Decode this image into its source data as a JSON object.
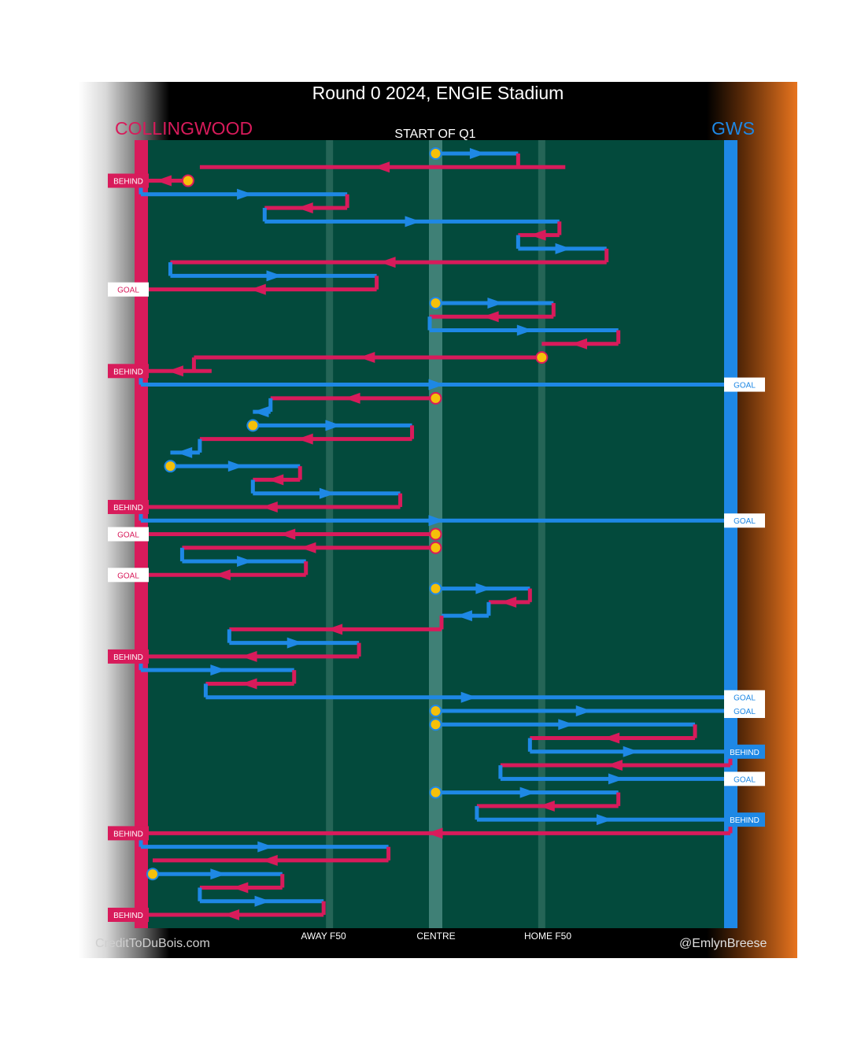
{
  "title": "Round 0 2024, ENGIE Stadium",
  "teams": {
    "left": {
      "name": "COLLINGWOOD",
      "color": "#d81b5b"
    },
    "right": {
      "name": "GWS",
      "color": "#1e88e5"
    }
  },
  "colors": {
    "field": "#034a3c",
    "centre_band": "#4a8a80",
    "f50_band": "#2b6a5c",
    "bounce": "#f5c00a"
  },
  "section_label": "START OF Q1",
  "credits": {
    "left": "CreditToDuBois.com",
    "right": "@EmlynBreese"
  },
  "chart_data": {
    "type": "line",
    "title": "Round 0 2024, ENGIE Stadium",
    "x_ticks": [
      {
        "label": "AWAY F50",
        "x": 32
      },
      {
        "label": "CENTRE",
        "x": 50
      },
      {
        "label": "HOME F50",
        "x": 68
      }
    ],
    "x_range": [
      0,
      100
    ],
    "legend": "none",
    "chains": [
      {
        "team": "GWS",
        "start_bounce": true,
        "x": [
          50,
          64
        ]
      },
      {
        "team": "COLLINGWOOD",
        "x": [
          72,
          10
        ]
      },
      {
        "team": "COLLINGWOOD",
        "start_bounce": true,
        "x": [
          8,
          0
        ],
        "result": "BEHIND"
      },
      {
        "team": "GWS",
        "x": [
          0,
          35
        ]
      },
      {
        "team": "COLLINGWOOD",
        "x": [
          35,
          21
        ]
      },
      {
        "team": "GWS",
        "x": [
          21,
          71
        ]
      },
      {
        "team": "COLLINGWOOD",
        "x": [
          71,
          64
        ]
      },
      {
        "team": "GWS",
        "x": [
          64,
          79
        ]
      },
      {
        "team": "COLLINGWOOD",
        "x": [
          79,
          5
        ]
      },
      {
        "team": "GWS",
        "x": [
          5,
          40
        ]
      },
      {
        "team": "COLLINGWOOD",
        "x": [
          40,
          0
        ],
        "result": "GOAL"
      },
      {
        "team": "GWS",
        "start_bounce": true,
        "x": [
          50,
          70
        ]
      },
      {
        "team": "COLLINGWOOD",
        "x": [
          70,
          49
        ]
      },
      {
        "team": "GWS",
        "x": [
          49,
          81
        ]
      },
      {
        "team": "COLLINGWOOD",
        "x": [
          81,
          68
        ]
      },
      {
        "team": "COLLINGWOOD",
        "start_bounce": true,
        "x": [
          68,
          9
        ]
      },
      {
        "team": "COLLINGWOOD",
        "x": [
          12,
          0
        ],
        "result": "BEHIND"
      },
      {
        "team": "GWS",
        "x": [
          0,
          100
        ],
        "result": "GOAL"
      },
      {
        "team": "COLLINGWOOD",
        "start_bounce": true,
        "x": [
          50,
          22
        ]
      },
      {
        "team": "GWS",
        "x": [
          22,
          19
        ]
      },
      {
        "team": "GWS",
        "start_bounce": true,
        "x": [
          19,
          46
        ]
      },
      {
        "team": "COLLINGWOOD",
        "x": [
          46,
          10
        ]
      },
      {
        "team": "GWS",
        "x": [
          10,
          5
        ]
      },
      {
        "team": "GWS",
        "start_bounce": true,
        "x": [
          5,
          27
        ]
      },
      {
        "team": "COLLINGWOOD",
        "x": [
          27,
          19
        ]
      },
      {
        "team": "GWS",
        "x": [
          19,
          44
        ]
      },
      {
        "team": "COLLINGWOOD",
        "x": [
          44,
          0
        ],
        "result": "BEHIND"
      },
      {
        "team": "GWS",
        "x": [
          0,
          100
        ],
        "result": "GOAL"
      },
      {
        "team": "COLLINGWOOD",
        "start_bounce": true,
        "x": [
          50,
          0
        ],
        "result": "GOAL"
      },
      {
        "team": "COLLINGWOOD",
        "start_bounce": true,
        "x": [
          50,
          7
        ]
      },
      {
        "team": "GWS",
        "x": [
          7,
          28
        ]
      },
      {
        "team": "COLLINGWOOD",
        "x": [
          28,
          0
        ],
        "result": "GOAL"
      },
      {
        "team": "GWS",
        "start_bounce": true,
        "x": [
          50,
          66
        ]
      },
      {
        "team": "COLLINGWOOD",
        "x": [
          66,
          59
        ]
      },
      {
        "team": "GWS",
        "x": [
          59,
          51
        ]
      },
      {
        "team": "COLLINGWOOD",
        "x": [
          51,
          15
        ]
      },
      {
        "team": "GWS",
        "x": [
          15,
          37
        ]
      },
      {
        "team": "COLLINGWOOD",
        "x": [
          37,
          0
        ],
        "result": "BEHIND"
      },
      {
        "team": "GWS",
        "x": [
          0,
          26
        ]
      },
      {
        "team": "COLLINGWOOD",
        "x": [
          26,
          11
        ]
      },
      {
        "team": "GWS",
        "x": [
          11,
          100
        ],
        "result": "GOAL"
      },
      {
        "team": "GWS",
        "start_bounce": true,
        "x": [
          50,
          100
        ],
        "result": "GOAL"
      },
      {
        "team": "GWS",
        "start_bounce": true,
        "x": [
          50,
          94
        ]
      },
      {
        "team": "COLLINGWOOD",
        "x": [
          94,
          66
        ]
      },
      {
        "team": "GWS",
        "x": [
          66,
          100
        ],
        "result": "BEHIND"
      },
      {
        "team": "COLLINGWOOD",
        "x": [
          100,
          61
        ]
      },
      {
        "team": "GWS",
        "x": [
          61,
          100
        ],
        "result": "GOAL"
      },
      {
        "team": "GWS",
        "start_bounce": true,
        "x": [
          50,
          81
        ]
      },
      {
        "team": "COLLINGWOOD",
        "x": [
          81,
          57
        ]
      },
      {
        "team": "GWS",
        "x": [
          57,
          100
        ],
        "result": "BEHIND"
      },
      {
        "team": "COLLINGWOOD",
        "x": [
          100,
          0
        ],
        "result": "BEHIND"
      },
      {
        "team": "GWS",
        "x": [
          0,
          42
        ]
      },
      {
        "team": "COLLINGWOOD",
        "x": [
          42,
          2
        ]
      },
      {
        "team": "GWS",
        "start_bounce": true,
        "x": [
          2,
          24
        ]
      },
      {
        "team": "COLLINGWOOD",
        "x": [
          24,
          10
        ]
      },
      {
        "team": "GWS",
        "x": [
          10,
          31
        ]
      },
      {
        "team": "COLLINGWOOD",
        "x": [
          31,
          0
        ],
        "result": "BEHIND"
      }
    ]
  }
}
